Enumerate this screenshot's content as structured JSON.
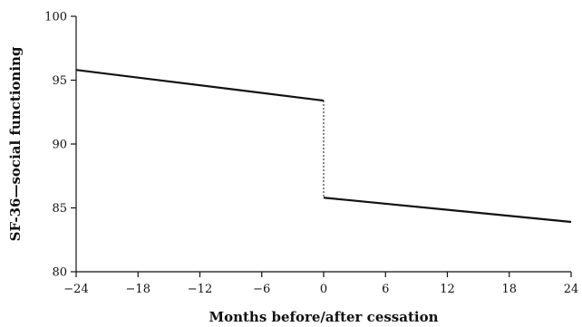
{
  "chart_data": {
    "type": "line",
    "title": "",
    "xlabel": "Months before/after cessation",
    "ylabel": "SF-36—social functioning",
    "xlim": [
      -24,
      24
    ],
    "ylim": [
      80,
      100
    ],
    "xticks": [
      -24,
      -18,
      -12,
      -6,
      0,
      6,
      12,
      18,
      24
    ],
    "xtick_labels": [
      "−24",
      "−18",
      "−12",
      "−6",
      "0",
      "6",
      "12",
      "18",
      "24"
    ],
    "yticks": [
      80,
      85,
      90,
      95,
      100
    ],
    "ytick_labels": [
      "80",
      "85",
      "90",
      "95",
      "100"
    ],
    "grid": false,
    "series": [
      {
        "segment": "before",
        "x": [
          -24,
          0
        ],
        "y": [
          95.8,
          93.4
        ]
      },
      {
        "segment": "after",
        "x": [
          0,
          24
        ],
        "y": [
          85.8,
          83.9
        ]
      }
    ],
    "connector": {
      "style": "dotted",
      "x": [
        0,
        0
      ],
      "y": [
        93.4,
        85.8
      ]
    }
  }
}
